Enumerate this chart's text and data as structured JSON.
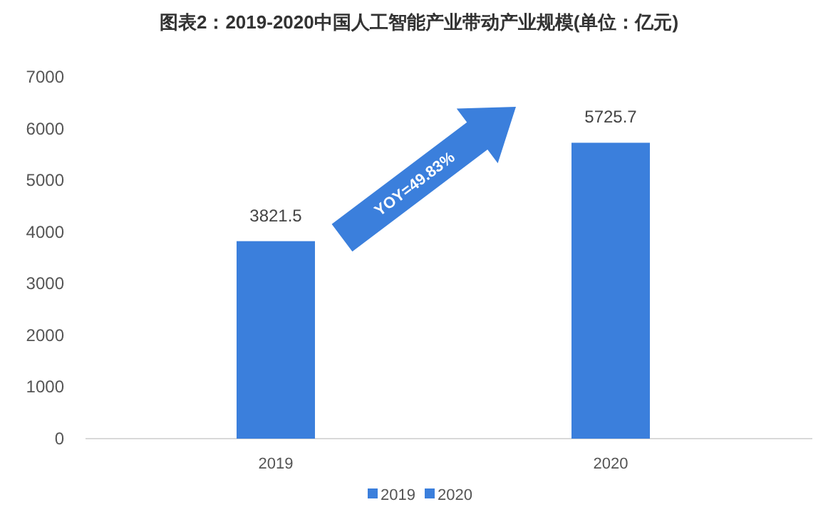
{
  "chart_data": {
    "type": "bar",
    "title": "图表2：2019-2020中国人工智能产业带动产业规模(单位：亿元)",
    "categories": [
      "2019",
      "2020"
    ],
    "series": [
      {
        "name": "2019",
        "color": "#3b7fdc",
        "values": [
          3821.5,
          null
        ]
      },
      {
        "name": "2020",
        "color": "#3b7fdc",
        "values": [
          null,
          5725.7
        ]
      }
    ],
    "ylim": [
      0,
      7000
    ],
    "yticks": [
      0,
      1000,
      2000,
      3000,
      4000,
      5000,
      6000,
      7000
    ],
    "grid": false,
    "legend": "bottom",
    "data_labels": true,
    "annotations": [
      "YOY=49.83%"
    ]
  }
}
